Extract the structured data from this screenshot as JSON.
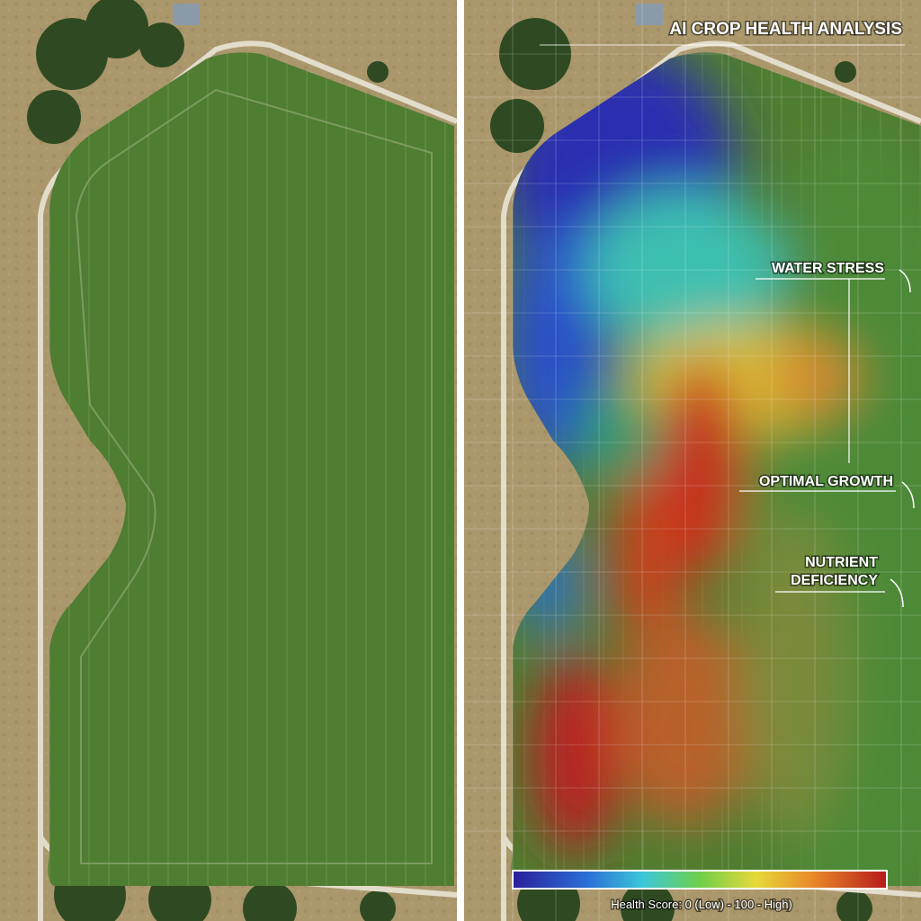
{
  "title": "AI CROP HEALTH ANALYSIS",
  "annotations": [
    {
      "label": "WATER STRESS"
    },
    {
      "label": "OPTIMAL GROWTH"
    },
    {
      "label_lines": [
        "NUTRIENT",
        "DEFICIENCY"
      ]
    }
  ],
  "legend": {
    "caption": "Health Score: 0 (Low) - 100 - High)"
  }
}
